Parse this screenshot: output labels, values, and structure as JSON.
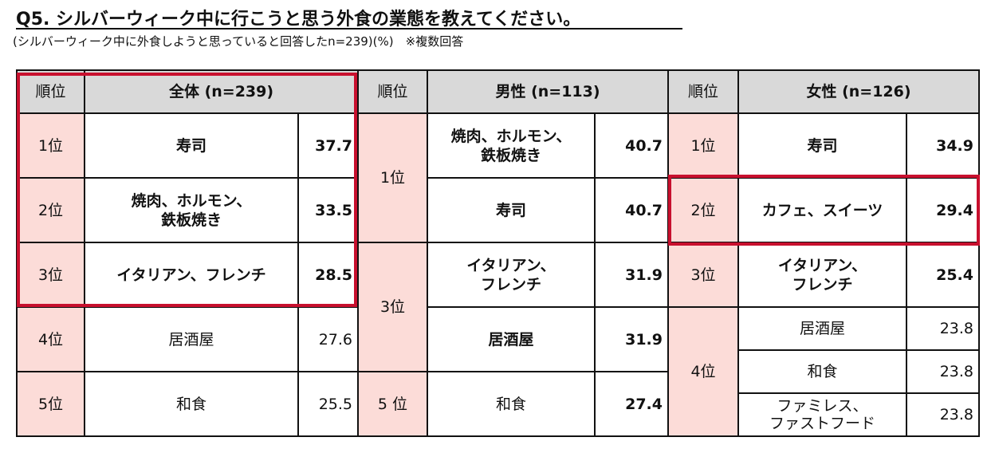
{
  "title": "Q5. シルバーウィーク中に行こうと思う外食の業態を教えてください。",
  "subtitle": "(シルバーウィーク中に外食しようと思っていると回答したn=239)(%)　※複数回答",
  "headers": {
    "rank": "順位",
    "overall": "全体 (n=239)",
    "male": "男性 (n=113)",
    "female": "女性 (n=126)"
  },
  "overall": [
    {
      "rank": "1位",
      "item": "寿司",
      "value": "37.7"
    },
    {
      "rank": "2位",
      "item": "焼肉、ホルモン、\n鉄板焼き",
      "value": "33.5"
    },
    {
      "rank": "3位",
      "item": "イタリアン、フレンチ",
      "value": "28.5"
    },
    {
      "rank": "4位",
      "item": "居酒屋",
      "value": "27.6"
    },
    {
      "rank": "5位",
      "item": "和食",
      "value": "25.5"
    }
  ],
  "male": {
    "ranks": [
      "1位",
      "3位",
      "5 位"
    ],
    "rows": [
      {
        "item": "焼肉、ホルモン、\n鉄板焼き",
        "value": "40.7"
      },
      {
        "item": "寿司",
        "value": "40.7"
      },
      {
        "item": "イタリアン、\nフレンチ",
        "value": "31.9"
      },
      {
        "item": "居酒屋",
        "value": "31.9"
      },
      {
        "item": "和食",
        "value": "27.4"
      }
    ]
  },
  "female": {
    "ranks": [
      "1位",
      "2位",
      "3位",
      "4位"
    ],
    "rows": [
      {
        "item": "寿司",
        "value": "34.9"
      },
      {
        "item": "カフェ、スイーツ",
        "value": "29.4"
      },
      {
        "item": "イタリアン、\nフレンチ",
        "value": "25.4"
      },
      {
        "item": "居酒屋",
        "value": "23.8"
      },
      {
        "item": "和食",
        "value": "23.8"
      },
      {
        "item": "ファミレス、\nファストフード",
        "value": "23.8"
      }
    ]
  },
  "colors": {
    "rank_bg": "#fcdcd8",
    "header_bg": "#d9d9d9",
    "highlight": "#c8102e"
  }
}
